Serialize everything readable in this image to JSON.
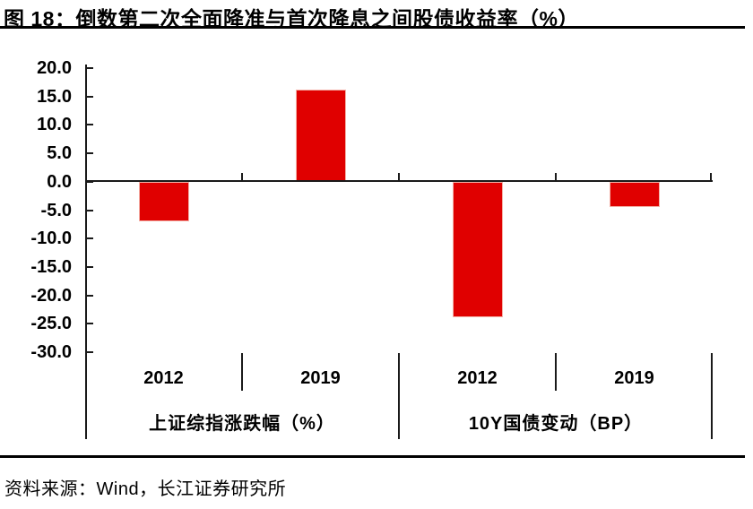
{
  "figure": {
    "title": "图 18：倒数第二次全面降准与首次降息之间股债收益率（%）",
    "source": "资料来源：Wind，长江证券研究所"
  },
  "chart_data": {
    "type": "bar",
    "title": "倒数第二次全面降准与首次降息之间股债收益率（%）",
    "categories": [
      "2012",
      "2019",
      "2012",
      "2019"
    ],
    "group_labels": [
      "上证综指涨跌幅（%）",
      "10Y国债变动（BP）"
    ],
    "values": [
      -7.0,
      16.2,
      -23.9,
      -4.4
    ],
    "y_tick_labels": [
      "20.0",
      "15.0",
      "10.0",
      "5.0",
      "0.0",
      "-5.0",
      "-10.0",
      "-15.0",
      "-20.0",
      "-25.0",
      "-30.0"
    ],
    "ylim": [
      -30.0,
      20.0
    ],
    "xlabel": "",
    "ylabel": "",
    "grid": false,
    "legend": "none",
    "bar_color": "#e00000",
    "axis_color": "#1a1a1a"
  }
}
